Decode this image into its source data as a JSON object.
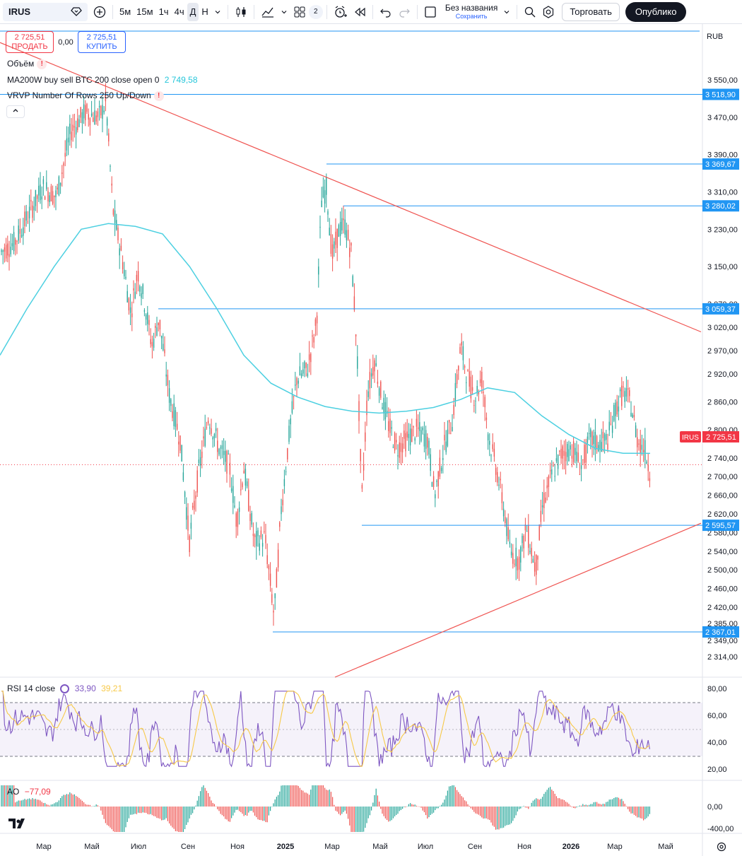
{
  "toolbar": {
    "symbol": "IRUS",
    "timeframes": [
      "5м",
      "15м",
      "1ч",
      "4ч",
      "Д",
      "Н"
    ],
    "active_timeframe": "Д",
    "layout_count": "2",
    "title": "Без названия",
    "save_label": "Сохранить",
    "trade_label": "Торговать",
    "publish_label": "Опублико"
  },
  "order": {
    "sell_price": "2 725,51",
    "sell_label": "ПРОДАТЬ",
    "spread": "0,00",
    "buy_price": "2 725,51",
    "buy_label": "КУПИТЬ"
  },
  "legends": {
    "volume": "Объём",
    "ma_label": "MA200W buy sell BTC 200 close open 0",
    "ma_value": "2 749,58",
    "vrvp": "VRVP Number Of Rows 250 Up/Down",
    "rsi_label": "RSI 14 close",
    "rsi_value": "33,90",
    "rsi_ma_value": "39,21",
    "ao_label": "AO",
    "ao_value": "−77,09"
  },
  "currency": "RUB",
  "colors": {
    "up": "#26a69a",
    "down": "#ef5350",
    "ma": "#4dd0e1",
    "level": "#2196f3",
    "trend": "#ef5350",
    "rsi": "#7e57c2",
    "rsi_ma": "#f7c948",
    "label_blue": "#2196f3",
    "label_red": "#f23645"
  },
  "chart_data": {
    "type": "candlestick",
    "symbol": "IRUS",
    "last_price": "2 725,51",
    "y_ticks": [
      "3 550,00",
      "3 470,00",
      "3 390,00",
      "3 310,00",
      "3 230,00",
      "3 150,00",
      "3 070,00",
      "3 020,00",
      "2 970,00",
      "2 920,00",
      "2 860,00",
      "2 800,00",
      "2 740,00",
      "2 700,00",
      "2 660,00",
      "2 620,00",
      "2 580,00",
      "2 540,00",
      "2 500,00",
      "2 460,00",
      "2 420,00",
      "2 385,00",
      "2 349,00",
      "2 314,00"
    ],
    "price_levels": [
      "3 518,90",
      "3 369,67",
      "3 280,02",
      "3 059,37",
      "2 595,57",
      "2 367,01"
    ],
    "x_ticks": [
      "Мар",
      "Май",
      "Июл",
      "Сен",
      "Ноя",
      "2025",
      "Мар",
      "Май",
      "Июл",
      "Сен",
      "Ноя",
      "2026",
      "Мар",
      "Май"
    ],
    "bold_x_ticks": [
      "2025",
      "2026"
    ],
    "rsi_ticks": [
      "80,00",
      "60,00",
      "40,00",
      "20,00"
    ],
    "ao_ticks": [
      "0,00",
      "-400,00"
    ],
    "ma_path_values": [
      2960,
      3060,
      3150,
      3230,
      3242,
      3236,
      3220,
      3150,
      3060,
      2960,
      2900,
      2870,
      2850,
      2840,
      2836,
      2840,
      2848,
      2865,
      2890,
      2880,
      2830,
      2790,
      2760,
      2750,
      2749.58
    ],
    "trendline_upper": {
      "start": 3630,
      "end": 3010
    },
    "trendline_lower": {
      "start": 2300,
      "end": 2600
    }
  }
}
